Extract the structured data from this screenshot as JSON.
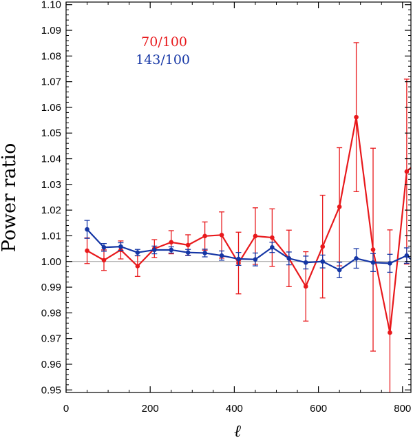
{
  "chart_data": {
    "type": "line",
    "title": "",
    "xlabel": "ℓ",
    "ylabel": "Power ratio",
    "xlim": [
      0,
      820
    ],
    "ylim": [
      0.949,
      1.101
    ],
    "xticks": [
      0,
      200,
      400,
      600,
      800
    ],
    "yticks": [
      0.95,
      0.96,
      0.97,
      0.98,
      0.99,
      1.0,
      1.01,
      1.02,
      1.03,
      1.04,
      1.05,
      1.06,
      1.07,
      1.08,
      1.09,
      1.1
    ],
    "xtick_labels": [
      "0",
      "200",
      "400",
      "600",
      "800"
    ],
    "ytick_labels": [
      "0.95",
      "0.96",
      "0.97",
      "0.98",
      "0.99",
      "1.00",
      "1.01",
      "1.02",
      "1.03",
      "1.04",
      "1.05",
      "1.06",
      "1.07",
      "1.08",
      "1.09",
      "1.10"
    ],
    "reference_line": 1.0,
    "grid": false,
    "legend_placement": "top-left",
    "series": [
      {
        "name": "70/100",
        "color": "#e8191c",
        "x": [
          50,
          90,
          130,
          170,
          210,
          250,
          290,
          330,
          370,
          410,
          450,
          490,
          530,
          570,
          610,
          650,
          690,
          730,
          770,
          810,
          830
        ],
        "y": [
          1.0042,
          1.0005,
          1.0045,
          0.9982,
          1.005,
          1.0075,
          1.0064,
          1.0099,
          1.0103,
          0.9994,
          1.0099,
          1.0093,
          1.0012,
          0.9903,
          1.0058,
          1.0213,
          1.0562,
          1.0046,
          0.9723,
          1.035,
          1.038
        ],
        "err": [
          0.005,
          0.004,
          0.0035,
          0.004,
          0.0035,
          0.0045,
          0.004,
          0.0055,
          0.009,
          0.012,
          0.011,
          0.0112,
          0.011,
          0.0135,
          0.02,
          0.023,
          0.029,
          0.0395,
          0.04,
          0.036,
          0.038
        ]
      },
      {
        "name": "143/100",
        "color": "#1536a5",
        "x": [
          50,
          90,
          130,
          170,
          210,
          250,
          290,
          330,
          370,
          410,
          450,
          490,
          530,
          570,
          610,
          650,
          690,
          730,
          770,
          810,
          830
        ],
        "y": [
          1.0125,
          1.0055,
          1.0058,
          1.0035,
          1.0045,
          1.0045,
          1.0035,
          1.0033,
          1.0023,
          1.001,
          1.0008,
          1.0055,
          1.0012,
          0.9996,
          1.0,
          0.9967,
          1.0012,
          0.9996,
          0.9993,
          1.0023,
          0.9995
        ],
        "err": [
          0.0035,
          0.0015,
          0.0015,
          0.0012,
          0.0015,
          0.0012,
          0.0012,
          0.0015,
          0.0018,
          0.0025,
          0.0025,
          0.002,
          0.0025,
          0.0025,
          0.0025,
          0.003,
          0.0038,
          0.0035,
          0.0035,
          0.003,
          0.0035
        ]
      }
    ]
  }
}
